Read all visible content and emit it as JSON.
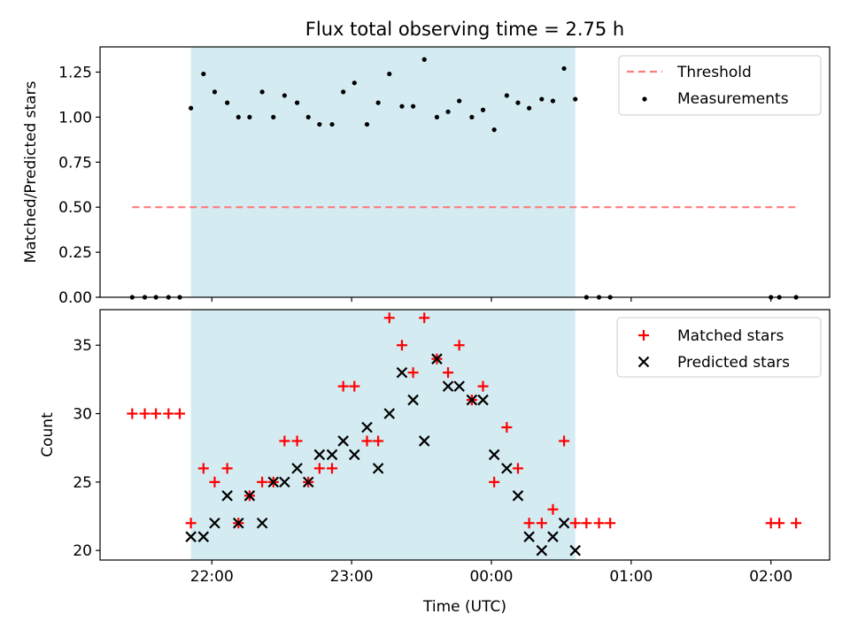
{
  "chart_data": {
    "type": "scatter",
    "title": "Flux total observing time = 2.75 h",
    "xlabel": "Time (UTC)",
    "x_ticks": [
      "22:00",
      "23:00",
      "00:00",
      "01:00",
      "02:00"
    ],
    "x_tick_hours": [
      22,
      23,
      24,
      25,
      26
    ],
    "x_range_hours": [
      21.2,
      26.42
    ],
    "shaded_interval_hours": [
      21.85,
      24.6
    ],
    "shade_color": "#add8e6",
    "panels": [
      {
        "ylabel": "Matched/Predicted stars",
        "ylim": [
          0,
          1.39
        ],
        "y_ticks": [
          "0.00",
          "0.25",
          "0.50",
          "0.75",
          "1.00",
          "1.25"
        ],
        "y_tick_values": [
          0,
          0.25,
          0.5,
          0.75,
          1.0,
          1.25
        ],
        "threshold": {
          "name": "Threshold",
          "value": 0.5,
          "x_range_hours": [
            21.43,
            26.18
          ],
          "color": "#ff7b7b"
        },
        "measurements": {
          "name": "Measurements",
          "color": "#000000",
          "x": [
            21.43,
            21.52,
            21.6,
            21.69,
            21.77,
            21.85,
            21.94,
            22.02,
            22.11,
            22.19,
            22.27,
            22.36,
            22.44,
            22.52,
            22.61,
            22.69,
            22.77,
            22.86,
            22.94,
            23.02,
            23.11,
            23.19,
            23.27,
            23.36,
            23.44,
            23.52,
            23.61,
            23.69,
            23.77,
            23.86,
            23.94,
            24.02,
            24.11,
            24.19,
            24.27,
            24.36,
            24.44,
            24.52,
            24.6,
            24.68,
            24.77,
            24.85,
            26.0,
            26.06,
            26.18
          ],
          "y": [
            0,
            0,
            0,
            0,
            0,
            1.05,
            1.24,
            1.14,
            1.08,
            1.0,
            1.0,
            1.14,
            1.0,
            1.12,
            1.08,
            1.0,
            0.96,
            0.96,
            1.14,
            1.19,
            0.96,
            1.08,
            1.24,
            1.06,
            1.06,
            1.32,
            1.0,
            1.03,
            1.09,
            1.0,
            1.04,
            0.93,
            1.12,
            1.08,
            1.05,
            1.1,
            1.09,
            1.27,
            1.1,
            0,
            0,
            0,
            0,
            0,
            0
          ]
        }
      },
      {
        "ylabel": "Count",
        "ylim": [
          19.3,
          37.6
        ],
        "y_ticks": [
          "20",
          "25",
          "30",
          "35"
        ],
        "y_tick_values": [
          20,
          25,
          30,
          35
        ],
        "series": [
          {
            "name": "Matched stars",
            "marker": "plus",
            "color": "#ff0000",
            "x": [
              21.43,
              21.52,
              21.6,
              21.69,
              21.77,
              21.85,
              21.94,
              22.02,
              22.11,
              22.19,
              22.27,
              22.36,
              22.44,
              22.52,
              22.61,
              22.69,
              22.77,
              22.86,
              22.94,
              23.02,
              23.11,
              23.19,
              23.27,
              23.36,
              23.44,
              23.52,
              23.61,
              23.69,
              23.77,
              23.86,
              23.94,
              24.02,
              24.11,
              24.19,
              24.27,
              24.36,
              24.44,
              24.52,
              24.6,
              24.68,
              24.77,
              24.85,
              26.0,
              26.06,
              26.18
            ],
            "y": [
              30,
              30,
              30,
              30,
              30,
              22,
              26,
              25,
              26,
              22,
              24,
              25,
              25,
              28,
              28,
              25,
              26,
              26,
              32,
              32,
              28,
              28,
              37,
              35,
              33,
              37,
              34,
              33,
              35,
              31,
              32,
              25,
              29,
              26,
              22,
              22,
              23,
              28,
              22,
              22,
              22,
              22,
              22,
              22,
              22
            ]
          },
          {
            "name": "Predicted stars",
            "marker": "x",
            "color": "#000000",
            "x": [
              21.85,
              21.94,
              22.02,
              22.11,
              22.19,
              22.27,
              22.36,
              22.44,
              22.52,
              22.61,
              22.69,
              22.77,
              22.86,
              22.94,
              23.02,
              23.11,
              23.19,
              23.27,
              23.36,
              23.44,
              23.52,
              23.61,
              23.69,
              23.77,
              23.86,
              23.94,
              24.02,
              24.11,
              24.19,
              24.27,
              24.36,
              24.44,
              24.52,
              24.6
            ],
            "y": [
              21,
              21,
              22,
              24,
              22,
              24,
              22,
              25,
              25,
              26,
              25,
              27,
              27,
              28,
              27,
              29,
              26,
              30,
              33,
              31,
              28,
              34,
              32,
              32,
              31,
              31,
              27,
              26,
              24,
              21,
              20,
              21,
              22,
              20
            ]
          }
        ]
      }
    ]
  }
}
